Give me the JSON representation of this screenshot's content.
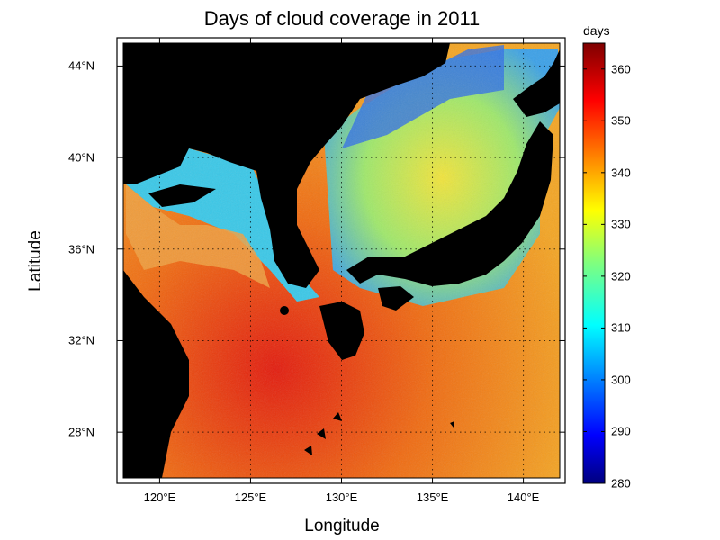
{
  "title": "Days of cloud coverage in 2011",
  "xlabel": "Longitude",
  "ylabel": "Latitude",
  "colorbar": {
    "units": "days",
    "ticks": [
      "280",
      "290",
      "300",
      "310",
      "320",
      "330",
      "340",
      "350",
      "360"
    ],
    "min": 280,
    "max": 365
  },
  "chart_data": {
    "type": "heatmap",
    "title": "Days of cloud coverage in 2011",
    "xlabel": "Longitude",
    "ylabel": "Latitude",
    "xlim": [
      118,
      142
    ],
    "ylim": [
      26,
      45
    ],
    "x_ticks": [
      "120°E",
      "125°E",
      "130°E",
      "135°E",
      "140°E"
    ],
    "y_ticks": [
      "28°N",
      "32°N",
      "36°N",
      "40°N",
      "44°N"
    ],
    "x_tick_values": [
      120,
      125,
      130,
      135,
      140
    ],
    "y_tick_values": [
      28,
      32,
      36,
      40,
      44
    ],
    "grid": "dotted",
    "land_color": "#000000",
    "colormap": "jet",
    "colorbar_range": [
      280,
      365
    ],
    "value_regions": [
      {
        "region": "East China Sea / coastal China",
        "approx_days": 350
      },
      {
        "region": "Yellow Sea / Bohai",
        "approx_days": 305
      },
      {
        "region": "Sea of Japan",
        "approx_days": 325
      },
      {
        "region": "Pacific south of Japan",
        "approx_days": 345
      }
    ]
  }
}
